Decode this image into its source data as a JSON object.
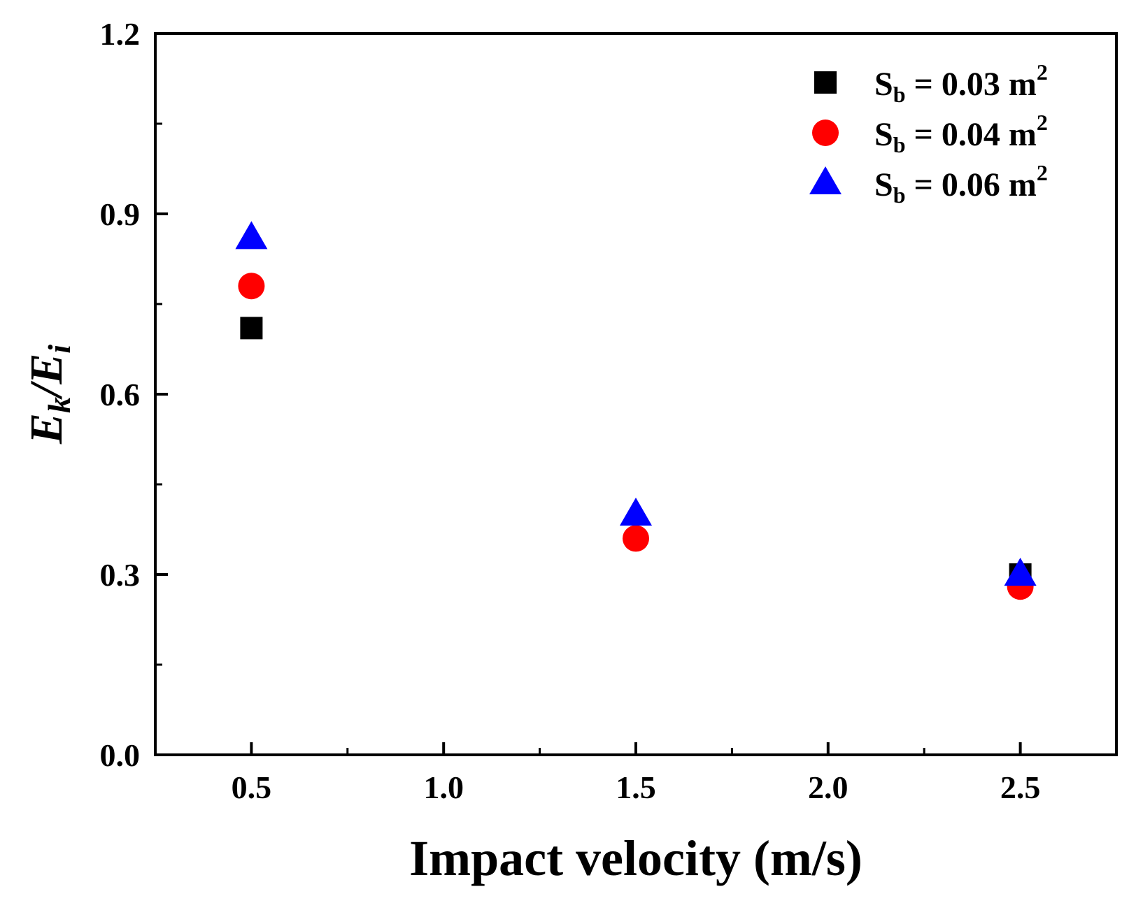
{
  "chart_data": {
    "type": "scatter",
    "title": "",
    "xlabel": "Impact velocity (m/s)",
    "ylabel": {
      "main": "E",
      "k": "k",
      "sep": "/E",
      "i": "i"
    },
    "xlim": [
      0.25,
      2.75
    ],
    "ylim": [
      0.0,
      1.2
    ],
    "xticks": [
      0.5,
      1.0,
      1.5,
      2.0,
      2.5
    ],
    "xtick_labels": [
      "0.5",
      "1.0",
      "1.5",
      "2.0",
      "2.5"
    ],
    "xminor": [
      0.75,
      1.25,
      1.75,
      2.25
    ],
    "yticks": [
      0.0,
      0.3,
      0.6,
      0.9,
      1.2
    ],
    "ytick_labels": [
      "0.0",
      "0.3",
      "0.6",
      "0.9",
      "1.2"
    ],
    "yminor": [
      0.15,
      0.45,
      0.75,
      1.05
    ],
    "legend_position": "top-right",
    "series": [
      {
        "label_prefix": "S",
        "label_sub": "b",
        "label_value": " = 0.03 m",
        "label_sup": "2",
        "marker": "square",
        "color": "#000000",
        "x": [
          0.5,
          2.5
        ],
        "y": [
          0.71,
          0.3
        ]
      },
      {
        "label_prefix": "S",
        "label_sub": "b",
        "label_value": " = 0.04 m",
        "label_sup": "2",
        "marker": "circle",
        "color": "#ff0000",
        "x": [
          0.5,
          1.5,
          2.5
        ],
        "y": [
          0.78,
          0.36,
          0.28
        ]
      },
      {
        "label_prefix": "S",
        "label_sub": "b",
        "label_value": " = 0.06 m",
        "label_sup": "2",
        "marker": "triangle",
        "color": "#0000ff",
        "x": [
          0.5,
          1.5,
          2.5
        ],
        "y": [
          0.86,
          0.4,
          0.3
        ]
      }
    ]
  }
}
